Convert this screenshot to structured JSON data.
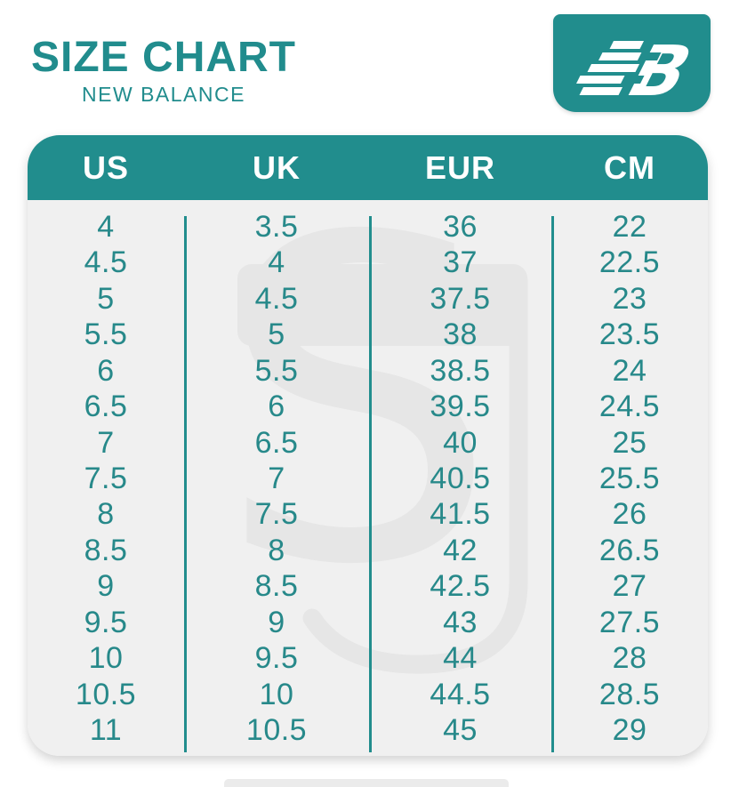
{
  "header": {
    "title": "SIZE CHART",
    "subtitle": "NEW BALANCE"
  },
  "logo": {
    "brand": "New Balance",
    "monogram_b": "B"
  },
  "theme": {
    "accent_teal": "#218D8D",
    "title_teal": "#218C8D",
    "cell_text_teal": "#27898A",
    "card_bg": "#F0F0F0",
    "watermark_gray": "#E6E6E6"
  },
  "watermark": {
    "letter": "S"
  },
  "chart_data": {
    "type": "table",
    "title": "SIZE CHART",
    "subtitle": "NEW BALANCE",
    "columns": [
      "US",
      "UK",
      "EUR",
      "CM"
    ],
    "rows": [
      [
        "4",
        "3.5",
        "36",
        "22"
      ],
      [
        "4.5",
        "4",
        "37",
        "22.5"
      ],
      [
        "5",
        "4.5",
        "37.5",
        "23"
      ],
      [
        "5.5",
        "5",
        "38",
        "23.5"
      ],
      [
        "6",
        "5.5",
        "38.5",
        "24"
      ],
      [
        "6.5",
        "6",
        "39.5",
        "24.5"
      ],
      [
        "7",
        "6.5",
        "40",
        "25"
      ],
      [
        "7.5",
        "7",
        "40.5",
        "25.5"
      ],
      [
        "8",
        "7.5",
        "41.5",
        "26"
      ],
      [
        "8.5",
        "8",
        "42",
        "26.5"
      ],
      [
        "9",
        "8.5",
        "42.5",
        "27"
      ],
      [
        "9.5",
        "9",
        "43",
        "27.5"
      ],
      [
        "10",
        "9.5",
        "44",
        "28"
      ],
      [
        "10.5",
        "10",
        "44.5",
        "28.5"
      ],
      [
        "11",
        "10.5",
        "45",
        "29"
      ]
    ]
  }
}
